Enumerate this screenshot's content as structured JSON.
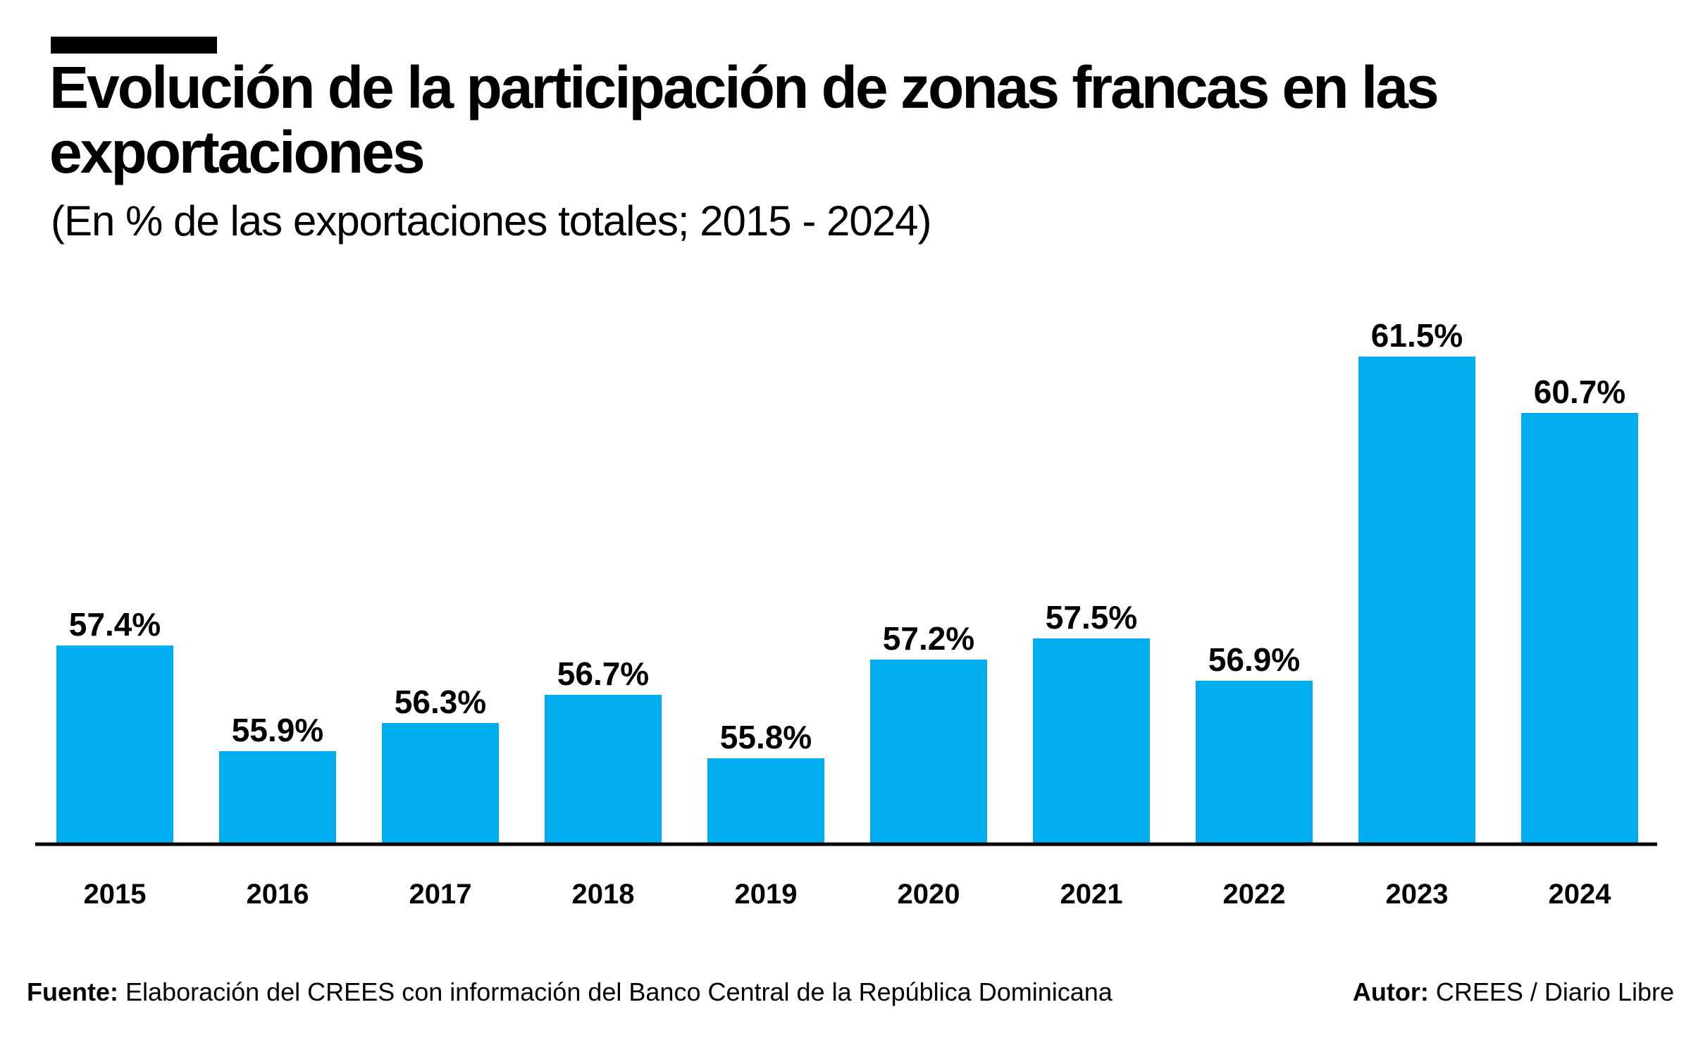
{
  "header": {
    "title": "Evolución de la participación de zonas francas en las exportaciones",
    "subtitle": "(En % de las exportaciones totales; 2015 - 2024)"
  },
  "footer": {
    "source_label": "Fuente:",
    "source_text": "Elaboración del CREES con información del Banco Central de la República Dominicana",
    "author_label": "Autor:",
    "author_text": "CREES / Diario Libre"
  },
  "colors": {
    "bar": "#00AEEF",
    "axis": "#000000"
  },
  "chart_data": {
    "type": "bar",
    "title": "Evolución de la participación de zonas francas en las exportaciones",
    "subtitle": "(En % de las exportaciones totales; 2015 - 2024)",
    "categories": [
      "2015",
      "2016",
      "2017",
      "2018",
      "2019",
      "2020",
      "2021",
      "2022",
      "2023",
      "2024"
    ],
    "values": [
      57.4,
      55.9,
      56.3,
      56.7,
      55.8,
      57.2,
      57.5,
      56.9,
      61.5,
      60.7
    ],
    "value_labels": [
      "57.4%",
      "55.9%",
      "56.3%",
      "56.7%",
      "55.8%",
      "57.2%",
      "57.5%",
      "56.9%",
      "61.5%",
      "60.7%"
    ],
    "xlabel": "",
    "ylabel": "",
    "ylim": [
      54.6,
      62.0
    ],
    "grid": false,
    "legend": "none"
  }
}
